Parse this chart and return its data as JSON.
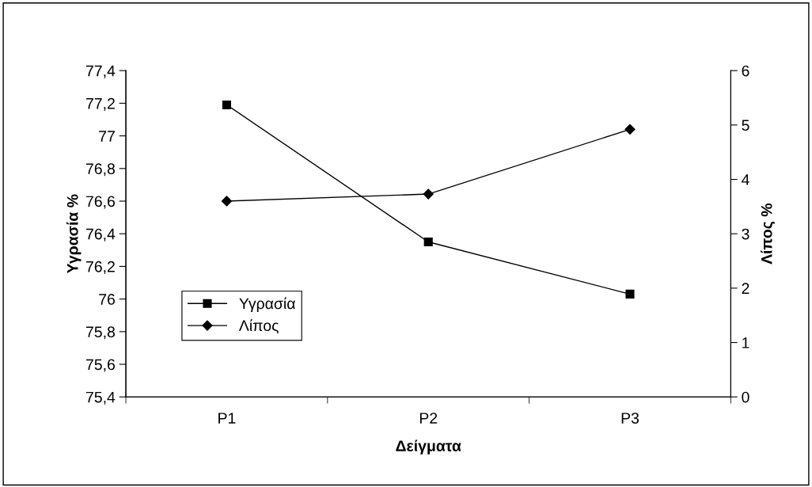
{
  "chart_data": {
    "type": "line",
    "xlabel": "Δείγματα",
    "ylabel": "Υγρασία %",
    "y2label": "Λίπος %",
    "categories": [
      "P1",
      "P2",
      "P3"
    ],
    "series": [
      {
        "name": "Υγρασία",
        "color": "#000000",
        "marker": "square",
        "values": [
          77.19,
          76.35,
          76.03
        ]
      },
      {
        "name": "Λίπος",
        "color": "#000000",
        "marker": "diamond",
        "axis": "y2",
        "values": [
          3.6,
          3.73,
          4.92
        ]
      }
    ],
    "ylim": [
      75.4,
      77.4
    ],
    "yticks": [
      {
        "value": 75.4,
        "label": "75,4"
      },
      {
        "value": 75.6,
        "label": "75,6"
      },
      {
        "value": 75.8,
        "label": "75,8"
      },
      {
        "value": 76,
        "label": "76"
      },
      {
        "value": 76.2,
        "label": "76,2"
      },
      {
        "value": 76.4,
        "label": "76,4"
      },
      {
        "value": 76.6,
        "label": "76,6"
      },
      {
        "value": 76.8,
        "label": "76,8"
      },
      {
        "value": 77,
        "label": "77"
      },
      {
        "value": 77.2,
        "label": "77,2"
      },
      {
        "value": 77.4,
        "label": "77,4"
      }
    ],
    "y2lim": [
      0,
      6
    ],
    "y2ticks": [
      0,
      1,
      2,
      3,
      4,
      5,
      6
    ],
    "legend": "lower left",
    "grid": false,
    "line_style": "solid"
  }
}
